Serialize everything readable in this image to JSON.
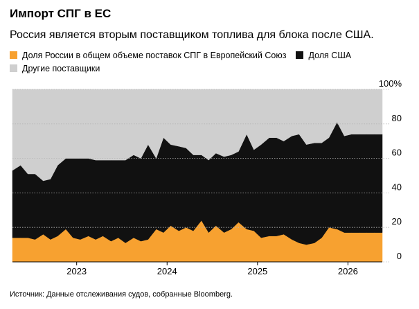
{
  "title": "Импорт СПГ в ЕС",
  "subtitle": "Россия является вторым поставщиком топлива для блока после США.",
  "source": "Источник: Данные отслеживания судов, собранные Bloomberg.",
  "colors": {
    "russia": "#f7a130",
    "usa": "#111111",
    "other": "#cfcfcf"
  },
  "chart_data": {
    "type": "area",
    "stacked": true,
    "title": "Импорт СПГ в ЕС",
    "subtitle": "Россия является вторым поставщиком топлива для блока после США.",
    "legend_placement": "top",
    "ylim": [
      0,
      100
    ],
    "yticks": [
      0,
      20,
      40,
      60,
      80,
      100
    ],
    "ytick_labels": [
      "0",
      "20",
      "40",
      "60",
      "80",
      "100%"
    ],
    "xlim": [
      2022.29,
      2026.38
    ],
    "xticks": [
      2023,
      2024,
      2025,
      2026
    ],
    "xtick_labels": [
      "2023",
      "2024",
      "2025",
      "2026"
    ],
    "x": [
      2022.29,
      2022.38,
      2022.46,
      2022.54,
      2022.63,
      2022.71,
      2022.79,
      2022.88,
      2022.96,
      2023.04,
      2023.13,
      2023.21,
      2023.29,
      2023.38,
      2023.46,
      2023.54,
      2023.63,
      2023.71,
      2023.79,
      2023.88,
      2023.96,
      2024.04,
      2024.13,
      2024.21,
      2024.29,
      2024.38,
      2024.46,
      2024.54,
      2024.63,
      2024.71,
      2024.79,
      2024.88,
      2024.96,
      2025.04,
      2025.13,
      2025.21,
      2025.29,
      2025.38,
      2025.46,
      2025.54,
      2025.63,
      2025.71,
      2025.79,
      2025.88,
      2025.96,
      2026.04,
      2026.13,
      2026.21,
      2026.29,
      2026.38
    ],
    "series": [
      {
        "name": "Доля России в общем объеме поставок СПГ в Европейский Союз",
        "values": [
          14,
          14,
          14,
          13,
          16,
          13,
          15,
          19,
          14,
          13,
          15,
          13,
          15,
          12,
          14,
          11,
          14,
          12,
          13,
          19,
          17,
          21,
          18,
          20,
          18,
          24,
          17,
          21,
          17,
          19,
          23,
          19,
          18,
          14,
          15,
          15,
          16,
          13,
          11,
          10,
          11,
          14,
          20,
          19,
          17,
          17,
          17,
          17,
          17,
          17
        ]
      },
      {
        "name": "Доля США",
        "values": [
          39,
          42,
          37,
          38,
          31,
          35,
          41,
          41,
          46,
          47,
          45,
          46,
          44,
          47,
          45,
          48,
          48,
          48,
          55,
          41,
          55,
          47,
          49,
          46,
          44,
          38,
          42,
          42,
          44,
          43,
          41,
          55,
          47,
          54,
          57,
          57,
          54,
          60,
          63,
          58,
          58,
          55,
          52,
          62,
          56,
          57,
          57,
          57,
          57,
          57
        ]
      },
      {
        "name": "Другие поставщики",
        "values": [
          47,
          44,
          49,
          49,
          53,
          52,
          44,
          40,
          40,
          40,
          40,
          41,
          41,
          41,
          41,
          41,
          38,
          40,
          32,
          40,
          28,
          32,
          33,
          34,
          38,
          38,
          41,
          37,
          39,
          38,
          36,
          26,
          35,
          32,
          28,
          28,
          30,
          27,
          26,
          32,
          31,
          31,
          28,
          19,
          27,
          26,
          26,
          26,
          26,
          26
        ]
      }
    ]
  }
}
